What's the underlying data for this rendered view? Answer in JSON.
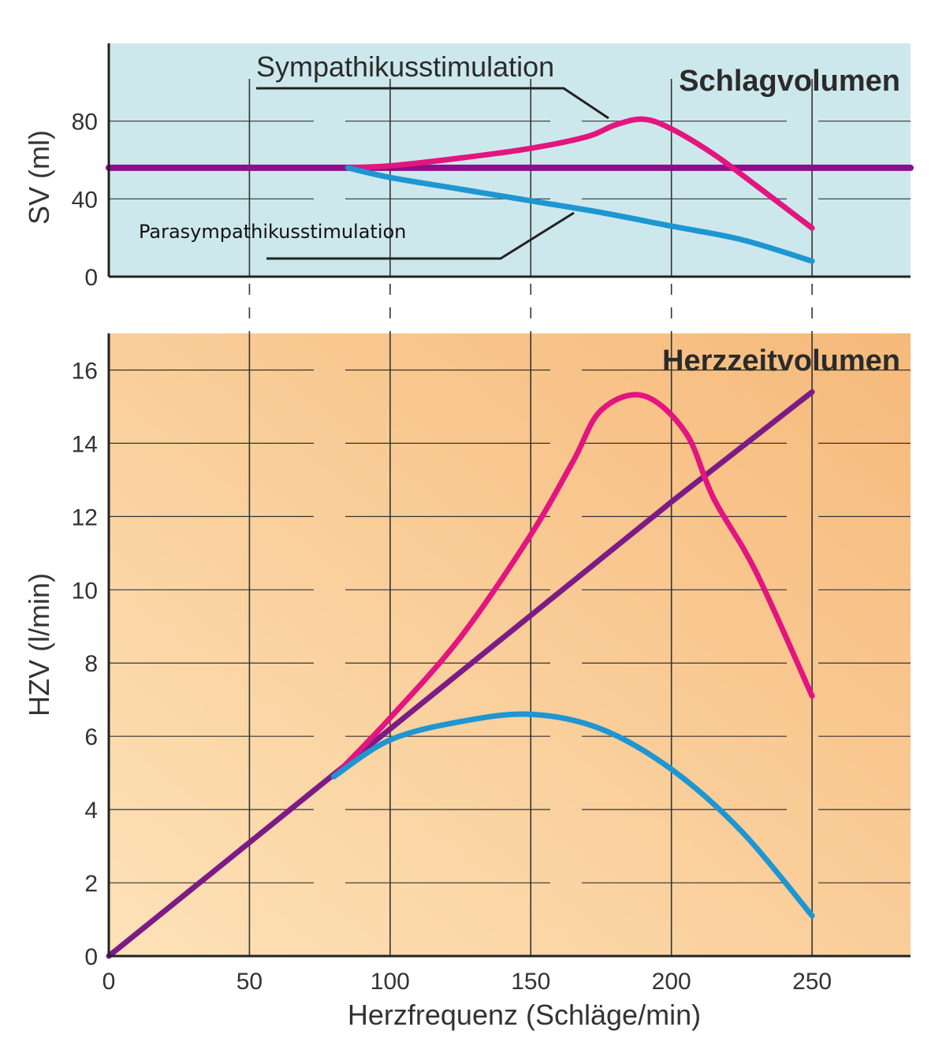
{
  "chart_data": [
    {
      "type": "line",
      "title": "Schlagvolumen",
      "ylabel": "SV (ml)",
      "xlabel": "",
      "xlim": [
        0,
        285
      ],
      "ylim": [
        0,
        120
      ],
      "yticks": [
        0,
        40,
        80
      ],
      "xgrid": [
        50,
        100,
        150,
        200,
        250
      ],
      "background": "#cde8ec",
      "annotations": [
        "Sympathikusstimulation",
        "Parasympathikusstimulation"
      ],
      "series": [
        {
          "color": "#8b0f8b",
          "x": [
            0,
            50,
            100,
            150,
            200,
            250,
            285
          ],
          "y": [
            56,
            56,
            56,
            56,
            56,
            56,
            56
          ]
        },
        {
          "color": "#e3157f",
          "x": [
            85,
            100,
            125,
            150,
            170,
            180,
            190,
            200,
            215,
            230,
            250
          ],
          "y": [
            56,
            57,
            61,
            66,
            72,
            78,
            81,
            76,
            63,
            47,
            25
          ]
        },
        {
          "color": "#1e96d2",
          "x": [
            85,
            100,
            125,
            150,
            175,
            200,
            225,
            250
          ],
          "y": [
            56,
            51,
            45,
            39,
            33,
            26,
            19,
            8
          ]
        }
      ]
    },
    {
      "type": "line",
      "title": "Herzzeitvolumen",
      "ylabel": "HZV (l/min)",
      "xlabel": "Herzfrequenz (Schläge/min)",
      "xlim": [
        0,
        285
      ],
      "ylim": [
        0,
        17
      ],
      "yticks": [
        0,
        2,
        4,
        6,
        8,
        10,
        12,
        14,
        16
      ],
      "xticks": [
        0,
        50,
        100,
        150,
        200,
        250
      ],
      "background_from": "#fde2b8",
      "background_to": "#f6b97a",
      "series": [
        {
          "color": "#7d1b86",
          "x": [
            0,
            50,
            100,
            150,
            200,
            250
          ],
          "y": [
            0,
            3.1,
            6.2,
            9.3,
            12.4,
            15.4
          ]
        },
        {
          "color": "#e3157f",
          "x": [
            80,
            100,
            125,
            150,
            165,
            175,
            190,
            205,
            215,
            230,
            250
          ],
          "y": [
            4.9,
            6.5,
            8.7,
            11.5,
            13.5,
            14.9,
            15.3,
            14.3,
            12.5,
            10.5,
            7.1
          ]
        },
        {
          "color": "#1e96d2",
          "x": [
            80,
            100,
            125,
            150,
            175,
            200,
            225,
            250
          ],
          "y": [
            4.9,
            5.9,
            6.4,
            6.6,
            6.2,
            5.1,
            3.4,
            1.1
          ]
        }
      ]
    }
  ]
}
